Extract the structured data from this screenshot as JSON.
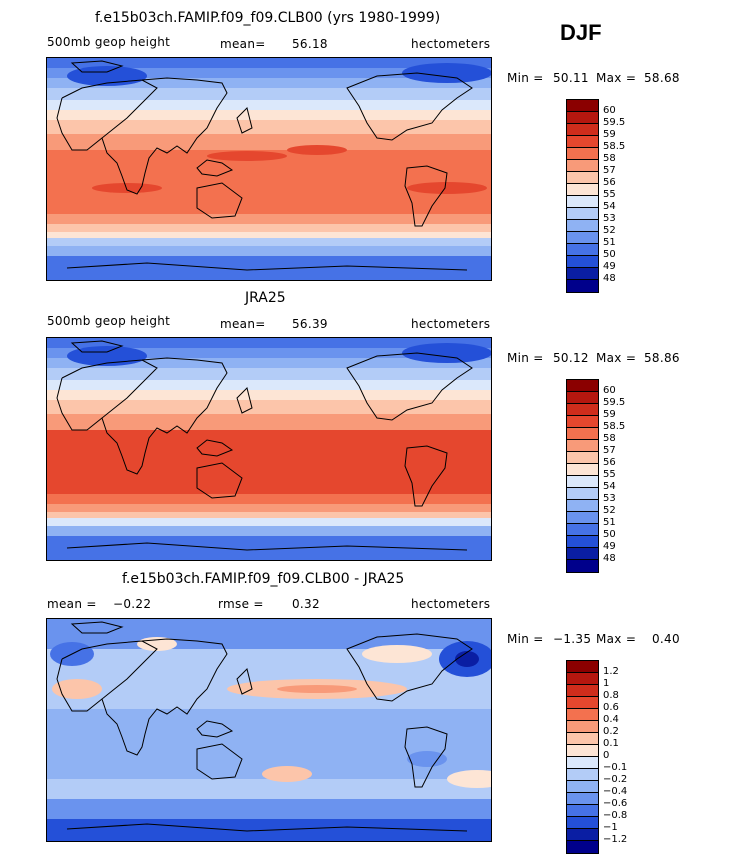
{
  "season": "DJF",
  "panels": [
    {
      "title": "f.e15b03ch.FAMIP.f09_f09.CLB00 (yrs 1980-1999)",
      "left_label": "500mb geop height",
      "stat_label": "mean=",
      "stat_value": "56.18",
      "units": "hectometers",
      "min_label": "Min =",
      "min_value": "50.11",
      "max_label": "Max =",
      "max_value": "58.68",
      "colorbar": {
        "labels": [
          "60",
          "59.5",
          "59",
          "58.5",
          "58",
          "57",
          "56",
          "55",
          "54",
          "53",
          "52",
          "51",
          "50",
          "49",
          "48"
        ],
        "colors": [
          "#8b0000",
          "#b5170f",
          "#cf2d1c",
          "#e5472e",
          "#f3714f",
          "#f89a79",
          "#fcc5aa",
          "#fde5d5",
          "#dbe8fb",
          "#b3ccf7",
          "#8fb2f3",
          "#6a93ee",
          "#4672e6",
          "#2450d8",
          "#0a1ea3",
          "#00008b"
        ]
      }
    },
    {
      "title": "JRA25",
      "left_label": "500mb geop height",
      "stat_label": "mean=",
      "stat_value": "56.39",
      "units": "hectometers",
      "min_label": "Min =",
      "min_value": "50.12",
      "max_label": "Max =",
      "max_value": "58.86",
      "colorbar": {
        "labels": [
          "60",
          "59.5",
          "59",
          "58.5",
          "58",
          "57",
          "56",
          "55",
          "54",
          "53",
          "52",
          "51",
          "50",
          "49",
          "48"
        ],
        "colors": [
          "#8b0000",
          "#b5170f",
          "#cf2d1c",
          "#e5472e",
          "#f3714f",
          "#f89a79",
          "#fcc5aa",
          "#fde5d5",
          "#dbe8fb",
          "#b3ccf7",
          "#8fb2f3",
          "#6a93ee",
          "#4672e6",
          "#2450d8",
          "#0a1ea3",
          "#00008b"
        ]
      }
    },
    {
      "title": "f.e15b03ch.FAMIP.f09_f09.CLB00 - JRA25",
      "left_label": "mean =",
      "left_value": "−0.22",
      "stat_label": "rmse =",
      "stat_value": "0.32",
      "units": "hectometers",
      "min_label": "Min =",
      "min_value": "−1.35",
      "max_label": "Max =",
      "max_value": "0.40",
      "colorbar": {
        "labels": [
          "1.2",
          "1",
          "0.8",
          "0.6",
          "0.4",
          "0.2",
          "0.1",
          "0",
          "−0.1",
          "−0.2",
          "−0.4",
          "−0.6",
          "−0.8",
          "−1",
          "−1.2"
        ],
        "colors": [
          "#8b0000",
          "#b5170f",
          "#cf2d1c",
          "#e5472e",
          "#f3714f",
          "#f89a79",
          "#fcc5aa",
          "#fde5d5",
          "#dbe8fb",
          "#b3ccf7",
          "#8fb2f3",
          "#6a93ee",
          "#4672e6",
          "#2450d8",
          "#0a1ea3",
          "#00008b"
        ]
      }
    }
  ]
}
